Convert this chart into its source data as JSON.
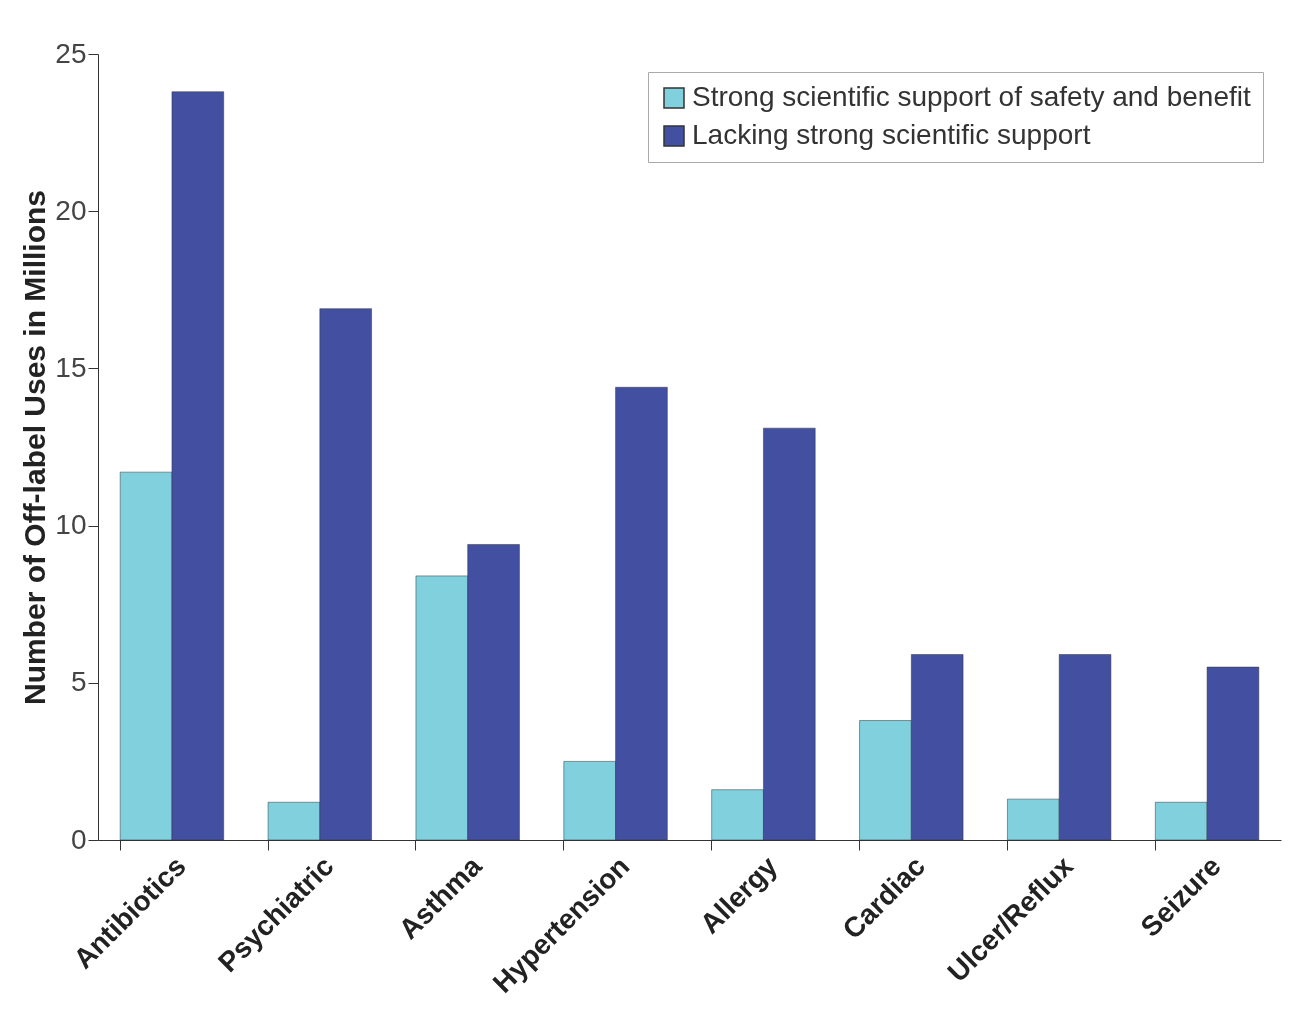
{
  "chart_data": {
    "type": "bar",
    "ylabel": "Number of Off-label Uses in Millions",
    "categories": [
      "Antibiotics",
      "Psychiatric",
      "Asthma",
      "Hypertension",
      "Allergy",
      "Cardiac",
      "Ulcer/Reflux",
      "Seizure"
    ],
    "series": [
      {
        "name": "Strong scientific support of safety and benefit",
        "color": "#80d0de",
        "values": [
          11.7,
          1.2,
          8.4,
          2.5,
          1.6,
          3.8,
          1.3,
          1.2
        ]
      },
      {
        "name": "Lacking strong scientific support",
        "color": "#4350a2",
        "values": [
          23.8,
          16.9,
          9.4,
          14.4,
          13.1,
          5.9,
          5.9,
          5.5
        ]
      }
    ],
    "ylim": [
      0,
      25
    ],
    "yticks": [
      0,
      5,
      10,
      15,
      20,
      25
    ],
    "grid": false,
    "legend": "top right"
  }
}
